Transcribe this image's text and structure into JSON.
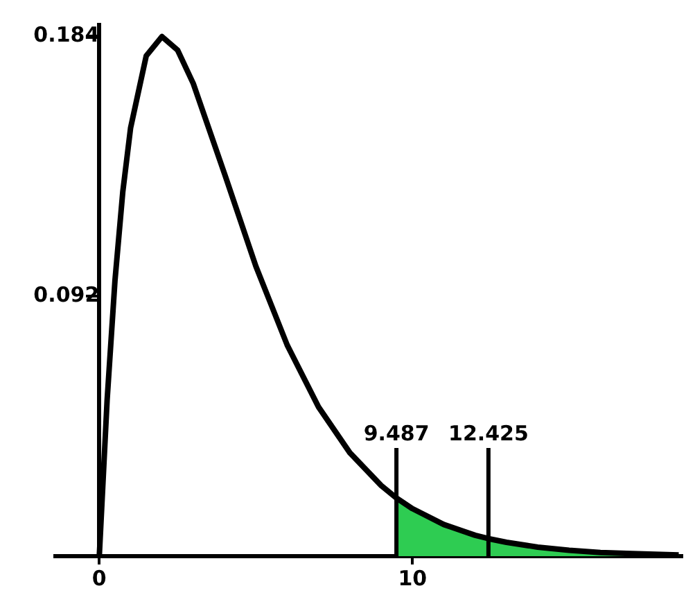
{
  "chart_data": {
    "type": "line",
    "xlim": [
      -1.4,
      18.6
    ],
    "ylim": [
      0,
      0.188
    ],
    "xticks": [
      0,
      10
    ],
    "yticks": [
      0.092,
      0.184
    ],
    "legend": false,
    "marker": "none",
    "series": [
      {
        "type": "area",
        "color": "#2ecc52",
        "x": [
          9.487,
          10,
          11,
          12,
          12.425,
          13,
          14,
          15,
          16,
          17,
          18.5
        ],
        "values": [
          0.0206,
          0.0168,
          0.0112,
          0.0074,
          0.0062,
          0.0049,
          0.0032,
          0.0021,
          0.0013,
          0.0009,
          0.0004
        ]
      },
      {
        "color": "#000000",
        "x": [
          0,
          0.25,
          0.5,
          0.75,
          1,
          1.5,
          2,
          2.5,
          3,
          4,
          5,
          6,
          7,
          8,
          9,
          9.487,
          10,
          11,
          12,
          12.425,
          13,
          14,
          15,
          16,
          17,
          18.5
        ],
        "values": [
          0,
          0.0552,
          0.0974,
          0.1289,
          0.1516,
          0.1771,
          0.1839,
          0.1791,
          0.1673,
          0.1353,
          0.1026,
          0.0747,
          0.0528,
          0.0366,
          0.025,
          0.0206,
          0.0168,
          0.0112,
          0.0074,
          0.0062,
          0.0049,
          0.0032,
          0.0021,
          0.0013,
          0.0009,
          0.0004
        ]
      }
    ],
    "ref_lines": [
      {
        "axis": "x",
        "value": 9.487,
        "label": "9.487"
      },
      {
        "axis": "x",
        "value": 12.425,
        "label": "12.425"
      }
    ]
  }
}
